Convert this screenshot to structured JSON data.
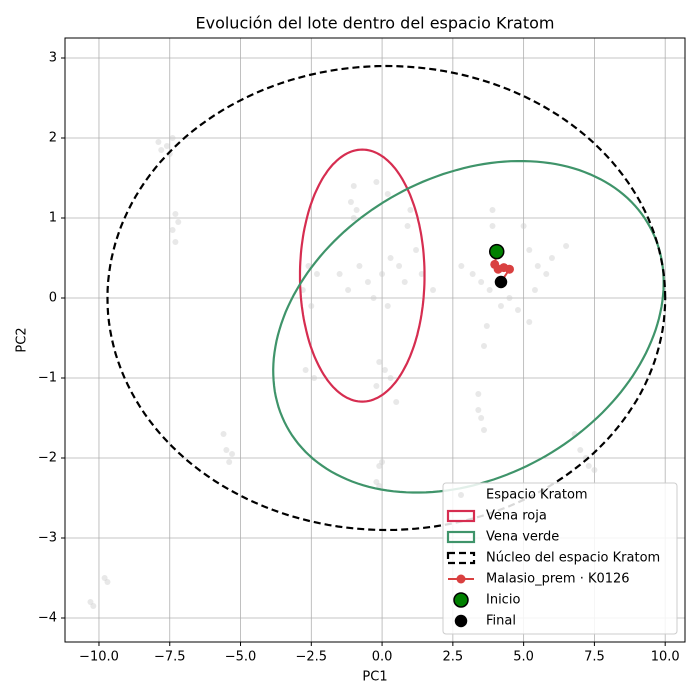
{
  "chart_data": {
    "type": "scatter",
    "title": "Evolución del lote dentro del espacio Kratom",
    "x_label": "PC1",
    "y_label": "PC2",
    "xlim": [
      -11.2,
      10.7
    ],
    "ylim": [
      -4.3,
      3.25
    ],
    "xticks": [
      {
        "value": -10,
        "label": "−10.0"
      },
      {
        "value": -7.5,
        "label": "−7.5"
      },
      {
        "value": -5,
        "label": "−5.0"
      },
      {
        "value": -2.5,
        "label": "−2.5"
      },
      {
        "value": 0,
        "label": "0.0"
      },
      {
        "value": 2.5,
        "label": "2.5"
      },
      {
        "value": 5,
        "label": "5.0"
      },
      {
        "value": 7.5,
        "label": "7.5"
      },
      {
        "value": 10,
        "label": "10.0"
      }
    ],
    "yticks": [
      3,
      2,
      1,
      0,
      {
        "value": -1,
        "label": "−1"
      },
      {
        "value": -2,
        "label": "−2"
      },
      {
        "value": -3,
        "label": "−3"
      },
      {
        "value": -4,
        "label": "−4"
      }
    ],
    "grid": true,
    "legend": "lower right",
    "series": [
      {
        "name": "Espacio Kratom",
        "kind": "scatter",
        "color": "#cccccc",
        "x": [
          -7.9,
          -7.8,
          -7.6,
          -7.4,
          -7.5,
          -7.3,
          -7.2,
          -7.4,
          -7.3,
          -2.6,
          -2.3,
          -2.8,
          -2.5,
          -2.7,
          -2.4,
          -1.0,
          -1.1,
          -0.9,
          -1.0,
          -0.2,
          0.2,
          1.0,
          0.9,
          -1.5,
          -1.2,
          -0.8,
          -0.5,
          0.0,
          0.3,
          0.6,
          0.8,
          1.2,
          1.4,
          -0.3,
          0.2,
          1.8,
          -0.1,
          0.1,
          0.3,
          -0.2,
          0.5,
          -0.1,
          0.0,
          -0.2,
          -0.1,
          2.8,
          3.2,
          3.5,
          3.8,
          4.5,
          3.9,
          3.9,
          5.2,
          5.5,
          5.8,
          5.4,
          6.0,
          6.5,
          5.0,
          4.2,
          4.8,
          5.2,
          3.7,
          3.6,
          3.4,
          3.5,
          3.6,
          3.4,
          -5.6,
          -5.5,
          -5.3,
          -5.4,
          -10.3,
          -10.2,
          -9.8,
          -9.7,
          6.8,
          7.0,
          7.3,
          7.5,
          7.2
        ],
        "y": [
          1.95,
          1.85,
          1.9,
          2.0,
          1.8,
          1.05,
          0.95,
          0.85,
          0.7,
          0.4,
          0.3,
          0.1,
          -0.1,
          -0.9,
          -1.0,
          1.4,
          1.2,
          1.1,
          1.0,
          1.45,
          1.3,
          1.1,
          0.9,
          0.3,
          0.1,
          0.4,
          0.2,
          0.3,
          0.5,
          0.4,
          0.2,
          0.6,
          0.3,
          0.0,
          -0.1,
          0.1,
          -0.8,
          -0.9,
          -1.0,
          -1.1,
          -1.3,
          -2.1,
          -2.05,
          -2.3,
          -2.35,
          0.4,
          0.3,
          0.2,
          0.1,
          0.0,
          0.9,
          1.1,
          0.6,
          0.4,
          0.3,
          0.1,
          0.5,
          0.65,
          0.9,
          -0.1,
          -0.15,
          -0.3,
          -0.35,
          -0.6,
          -1.2,
          -1.5,
          -1.65,
          -1.4,
          -1.7,
          -1.9,
          -1.95,
          -2.05,
          -3.8,
          -3.85,
          -3.5,
          -3.55,
          -1.7,
          -1.9,
          -2.1,
          -2.15,
          -2.0
        ]
      },
      {
        "name": "Vena roja",
        "kind": "ellipse",
        "color": "#d62d50",
        "center": [
          -0.7,
          0.28
        ],
        "width": 4.4,
        "height": 3.15,
        "angle": 0
      },
      {
        "name": "Vena verde",
        "kind": "ellipse",
        "color": "#3f946a",
        "center": [
          3.05,
          -0.36
        ],
        "width": 13.84,
        "height": 3.98,
        "angle": 5
      },
      {
        "name": "Núcleo del espacio Kratom",
        "kind": "ellipse",
        "color": "#000000",
        "linestyle": "dashed",
        "center": [
          0.15,
          0
        ],
        "width": 19.7,
        "height": 5.8,
        "angle": 0
      },
      {
        "name": "Malasio_prem · K0126",
        "kind": "line",
        "color": "#d94040",
        "x": [
          4.05,
          3.98,
          4.1,
          4.3,
          4.5,
          4.2
        ],
        "y": [
          0.58,
          0.42,
          0.36,
          0.38,
          0.36,
          0.2
        ]
      },
      {
        "name": "Inicio",
        "kind": "point",
        "color": "#008000",
        "x": [
          4.05
        ],
        "y": [
          0.58
        ]
      },
      {
        "name": "Final",
        "kind": "point",
        "color": "#000000",
        "x": [
          4.2
        ],
        "y": [
          0.2
        ]
      }
    ]
  }
}
